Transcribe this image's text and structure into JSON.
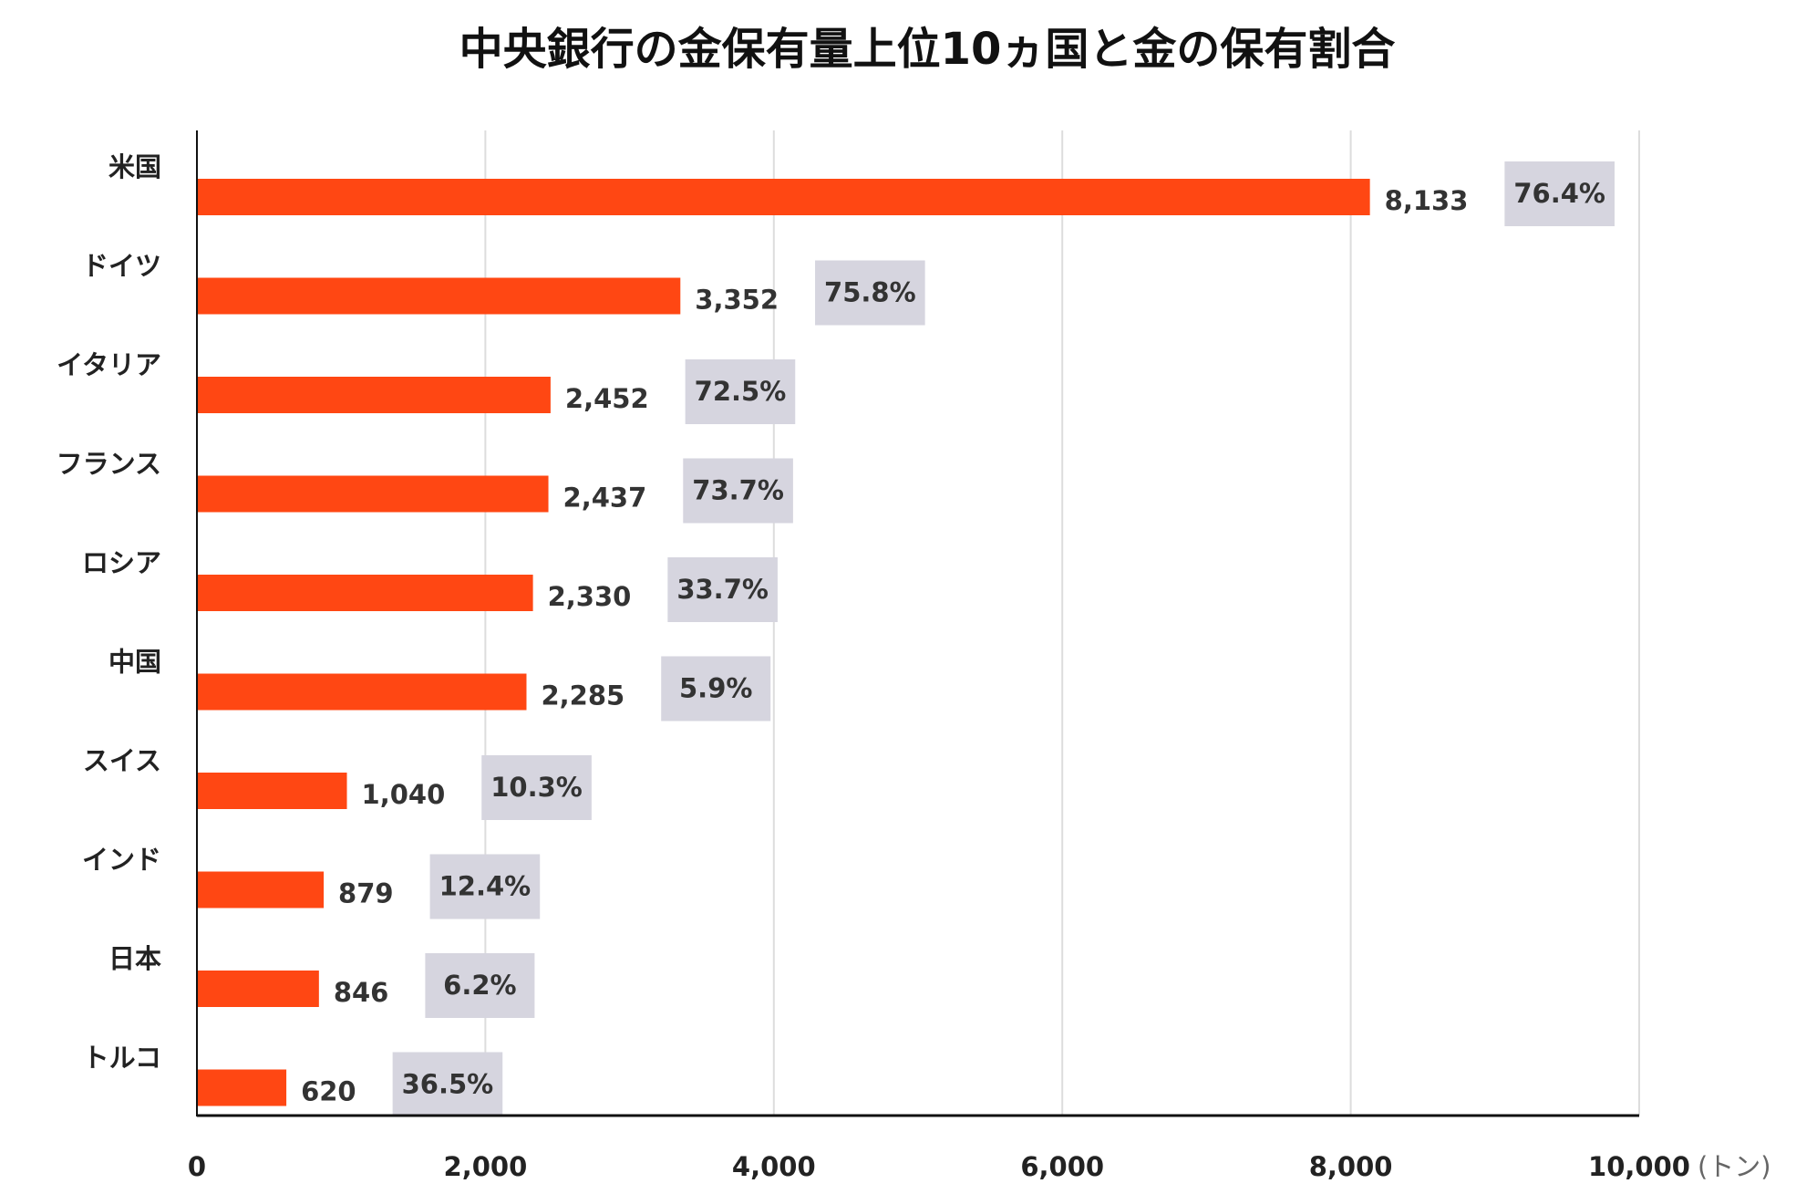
{
  "chart_data": {
    "type": "bar",
    "orientation": "horizontal",
    "title": "中央銀行の金保有量上位10ヵ国と金の保有割合",
    "categories": [
      "米国",
      "ドイツ",
      "イタリア",
      "フランス",
      "ロシア",
      "中国",
      "スイス",
      "インド",
      "日本",
      "トルコ"
    ],
    "values": [
      8133,
      3352,
      2452,
      2437,
      2330,
      2285,
      1040,
      879,
      846,
      620
    ],
    "value_labels": [
      "8,133",
      "3,352",
      "2,452",
      "2,437",
      "2,330",
      "2,285",
      "1,040",
      "879",
      "846",
      "620"
    ],
    "share_labels": [
      "76.4%",
      "75.8%",
      "72.5%",
      "73.7%",
      "33.7%",
      "5.9%",
      "10.3%",
      "12.4%",
      "6.2%",
      "36.5%"
    ],
    "xlim": [
      0,
      10000
    ],
    "x_ticks": [
      0,
      2000,
      4000,
      6000,
      8000,
      10000
    ],
    "x_tick_labels": [
      "0",
      "2,000",
      "4,000",
      "6,000",
      "8,000",
      "10,000"
    ],
    "x_unit": "(トン)",
    "grid": "vertical",
    "colors": {
      "bar": "#ff4713",
      "share_box": "#d6d5df",
      "grid": "#dddddd",
      "axis": "#111111"
    }
  }
}
